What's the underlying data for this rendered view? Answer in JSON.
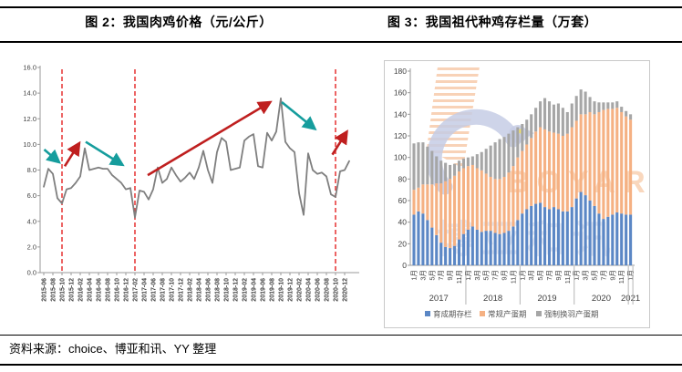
{
  "header": {
    "fig2_title": "图 2：我国肉鸡价格（元/公斤）",
    "fig3_title": "图 3：我国祖代种鸡存栏量（万套）"
  },
  "footer": {
    "source": "资料来源：choice、博亚和讯、YY 整理"
  },
  "colors": {
    "line": "#7f7f7f",
    "dashed_vline": "#e53030",
    "arrow_up": "#bf1f1f",
    "arrow_down": "#169d9d",
    "bar_blue": "#5b87c5",
    "bar_orange": "#f5b183",
    "bar_gray": "#a6a6a6",
    "axis": "#9a9a9a",
    "tick_text": "#404040",
    "frame": "#c9c9c9"
  },
  "watermark": {
    "logo": "boyar-dove-logo",
    "text": "BOYAR",
    "subtext": "博亚和讯",
    "text_color": "#f0a468",
    "subtext_color": "#a8b6da",
    "dove_color": "#b7c0de",
    "wing_stripe_color": "#f6c09a",
    "eye_color": "#f5e04a"
  },
  "chart_data": [
    {
      "type": "line",
      "title": "图 2：我国肉鸡价格（元/公斤）",
      "ylabel": "元/公斤",
      "ylim": [
        0,
        16
      ],
      "ytick_labels": [
        "0.0",
        "2.0",
        "4.0",
        "6.0",
        "8.0",
        "10.0",
        "12.0",
        "14.0",
        "16.0"
      ],
      "x_start": "2015-06",
      "x_step_months": 1,
      "x_tick_labels": [
        "2015-06",
        "2015-08",
        "2015-10",
        "2015-12",
        "2016-02",
        "2016-04",
        "2016-06",
        "2016-08",
        "2016-10",
        "2016-12",
        "2017-02",
        "2017-04",
        "2017-06",
        "2017-08",
        "2017-10",
        "2017-12",
        "2018-02",
        "2018-04",
        "2018-06",
        "2018-08",
        "2018-10",
        "2018-12",
        "2019-02",
        "2019-04",
        "2019-06",
        "2019-08",
        "2019-10",
        "2019-12",
        "2020-02",
        "2020-04",
        "2020-06",
        "2020-08",
        "2020-10",
        "2020-12"
      ],
      "values": [
        6.7,
        8.1,
        7.7,
        5.8,
        5.4,
        6.5,
        6.6,
        7.0,
        7.5,
        9.7,
        8.0,
        8.1,
        8.2,
        8.1,
        8.1,
        7.6,
        7.3,
        7.0,
        6.5,
        6.6,
        4.3,
        6.4,
        6.3,
        5.7,
        6.5,
        8.2,
        7.0,
        7.3,
        8.2,
        7.6,
        7.1,
        7.4,
        7.8,
        7.3,
        8.2,
        9.5,
        8.0,
        7.0,
        9.4,
        10.5,
        10.2,
        8.0,
        8.1,
        8.2,
        10.3,
        10.6,
        10.8,
        8.3,
        8.2,
        10.9,
        10.3,
        11.0,
        13.6,
        10.2,
        9.7,
        9.4,
        6.2,
        4.5,
        9.3,
        8.0,
        7.7,
        7.8,
        7.5,
        6.1,
        5.9,
        7.9,
        8.0,
        8.7
      ],
      "vlines": {
        "style": "dashed",
        "month_index": [
          4,
          20,
          64
        ],
        "labels": [
          "2015-10",
          "2017-02",
          "2020-10"
        ]
      },
      "arrows": [
        {
          "trend": "down",
          "from": [
            0.1,
            9.6
          ],
          "to": [
            3.4,
            8.6
          ]
        },
        {
          "trend": "up",
          "from": [
            4.6,
            8.3
          ],
          "to": [
            7.8,
            10.1
          ]
        },
        {
          "trend": "down",
          "from": [
            9.2,
            10.2
          ],
          "to": [
            17.3,
            8.4
          ]
        },
        {
          "trend": "up",
          "from": [
            22.8,
            7.6
          ],
          "to": [
            49.7,
            13.3
          ]
        },
        {
          "trend": "down",
          "from": [
            52.2,
            13.3
          ],
          "to": [
            59.5,
            11.2
          ]
        },
        {
          "trend": "up",
          "from": [
            63.3,
            9.2
          ],
          "to": [
            66.5,
            11.0
          ]
        }
      ],
      "legend": [],
      "grid": false
    },
    {
      "type": "stacked-bar",
      "title": "图 3：我国祖代种鸡存栏量（万套）",
      "ylabel": "万套",
      "ylim": [
        0,
        180
      ],
      "ytick_labels": [
        "0",
        "20",
        "40",
        "60",
        "80",
        "100",
        "120",
        "140",
        "160",
        "180"
      ],
      "x_years": [
        {
          "label": "2017",
          "months": 12
        },
        {
          "label": "2018",
          "months": 12
        },
        {
          "label": "2019",
          "months": 12
        },
        {
          "label": "2020",
          "months": 12
        },
        {
          "label": "2021",
          "months": 1
        }
      ],
      "month_label_suffix": "月",
      "series": [
        {
          "name": "育成期存栏",
          "color": "#5b87c5",
          "values": [
            47,
            50,
            48,
            42,
            35,
            28,
            21,
            17,
            16,
            18,
            24,
            29,
            33,
            36,
            33,
            31,
            32,
            32,
            30,
            29,
            30,
            32,
            36,
            42,
            48,
            52,
            55,
            57,
            58,
            54,
            52,
            54,
            52,
            50,
            50,
            54,
            62,
            68,
            65,
            60,
            55,
            48,
            43,
            45,
            47,
            49,
            48,
            47,
            47
          ]
        },
        {
          "name": "常规产蛋期",
          "color": "#f5b183",
          "values": [
            23,
            22,
            27,
            33,
            40,
            48,
            55,
            61,
            64,
            65,
            63,
            61,
            59,
            57,
            57,
            57,
            53,
            50,
            50,
            51,
            52,
            54,
            56,
            58,
            58,
            60,
            63,
            67,
            70,
            72,
            72,
            69,
            70,
            70,
            72,
            74,
            72,
            72,
            75,
            82,
            85,
            94,
            101,
            100,
            98,
            97,
            94,
            91,
            88
          ]
        },
        {
          "name": "强制换羽产蛋期",
          "color": "#a6a6a6",
          "values": [
            43,
            42,
            39,
            35,
            31,
            25,
            21,
            17,
            13,
            11,
            10,
            9,
            8,
            8,
            13,
            17,
            23,
            29,
            34,
            37,
            37,
            36,
            33,
            28,
            25,
            23,
            22,
            22,
            24,
            29,
            28,
            26,
            28,
            26,
            20,
            22,
            23,
            23,
            21,
            14,
            12,
            9,
            7,
            6,
            6,
            6,
            5,
            5,
            5
          ]
        }
      ],
      "legend_position": "bottom",
      "grid": false
    }
  ]
}
